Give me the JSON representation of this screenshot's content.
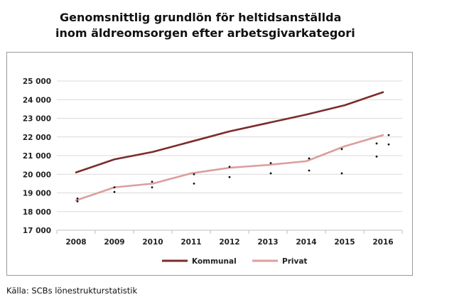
{
  "chart_data": {
    "type": "line",
    "title_lines": [
      "Genomsnittlig grundlön för heltidsanställda",
      "inom äldreomsorgen efter arbetsgivarkategori"
    ],
    "categories": [
      "2008",
      "2009",
      "2010",
      "2011",
      "2012",
      "2013",
      "2014",
      "2015",
      "2016"
    ],
    "y_ticks": [
      "17 000",
      "18 000",
      "19 000",
      "20 000",
      "21 000",
      "22 000",
      "23 000",
      "24 000",
      "25 000"
    ],
    "ylim": [
      17000,
      25000
    ],
    "grid": "horizontal",
    "legend_position": "bottom",
    "series": [
      {
        "name": "Kommunal",
        "color": "#7b2c2a",
        "values": [
          20100,
          20800,
          21200,
          21750,
          22300,
          22750,
          23200,
          23700,
          24400
        ]
      },
      {
        "name": "Privat",
        "color": "#dc9e9e",
        "values": [
          18600,
          19300,
          19500,
          20050,
          20350,
          20500,
          20700,
          21500,
          22100
        ]
      }
    ],
    "scatter_points": [
      {
        "x": "2008",
        "y": 18700
      },
      {
        "x": "2008",
        "y": 18550
      },
      {
        "x": "2009",
        "y": 19300
      },
      {
        "x": "2009",
        "y": 19050
      },
      {
        "x": "2010",
        "y": 19600
      },
      {
        "x": "2010",
        "y": 19300
      },
      {
        "x": "2011",
        "y": 20000
      },
      {
        "x": "2011",
        "y": 19500
      },
      {
        "x": "2012",
        "y": 20400
      },
      {
        "x": "2012",
        "y": 19850
      },
      {
        "x": "2013",
        "y": 20600
      },
      {
        "x": "2013",
        "y": 20050
      },
      {
        "x": "2014",
        "y": 20850
      },
      {
        "x": "2014",
        "y": 20200
      },
      {
        "x": "2015",
        "y": 21350
      },
      {
        "x": "2015",
        "y": 20050
      },
      {
        "x": "2016",
        "y": 21650
      },
      {
        "x": "2016",
        "y": 20950
      },
      {
        "x": "2016",
        "y": 22100
      },
      {
        "x": "2016",
        "y": 21600
      }
    ]
  },
  "source": "Källa: SCBs lönestrukturstatistik"
}
